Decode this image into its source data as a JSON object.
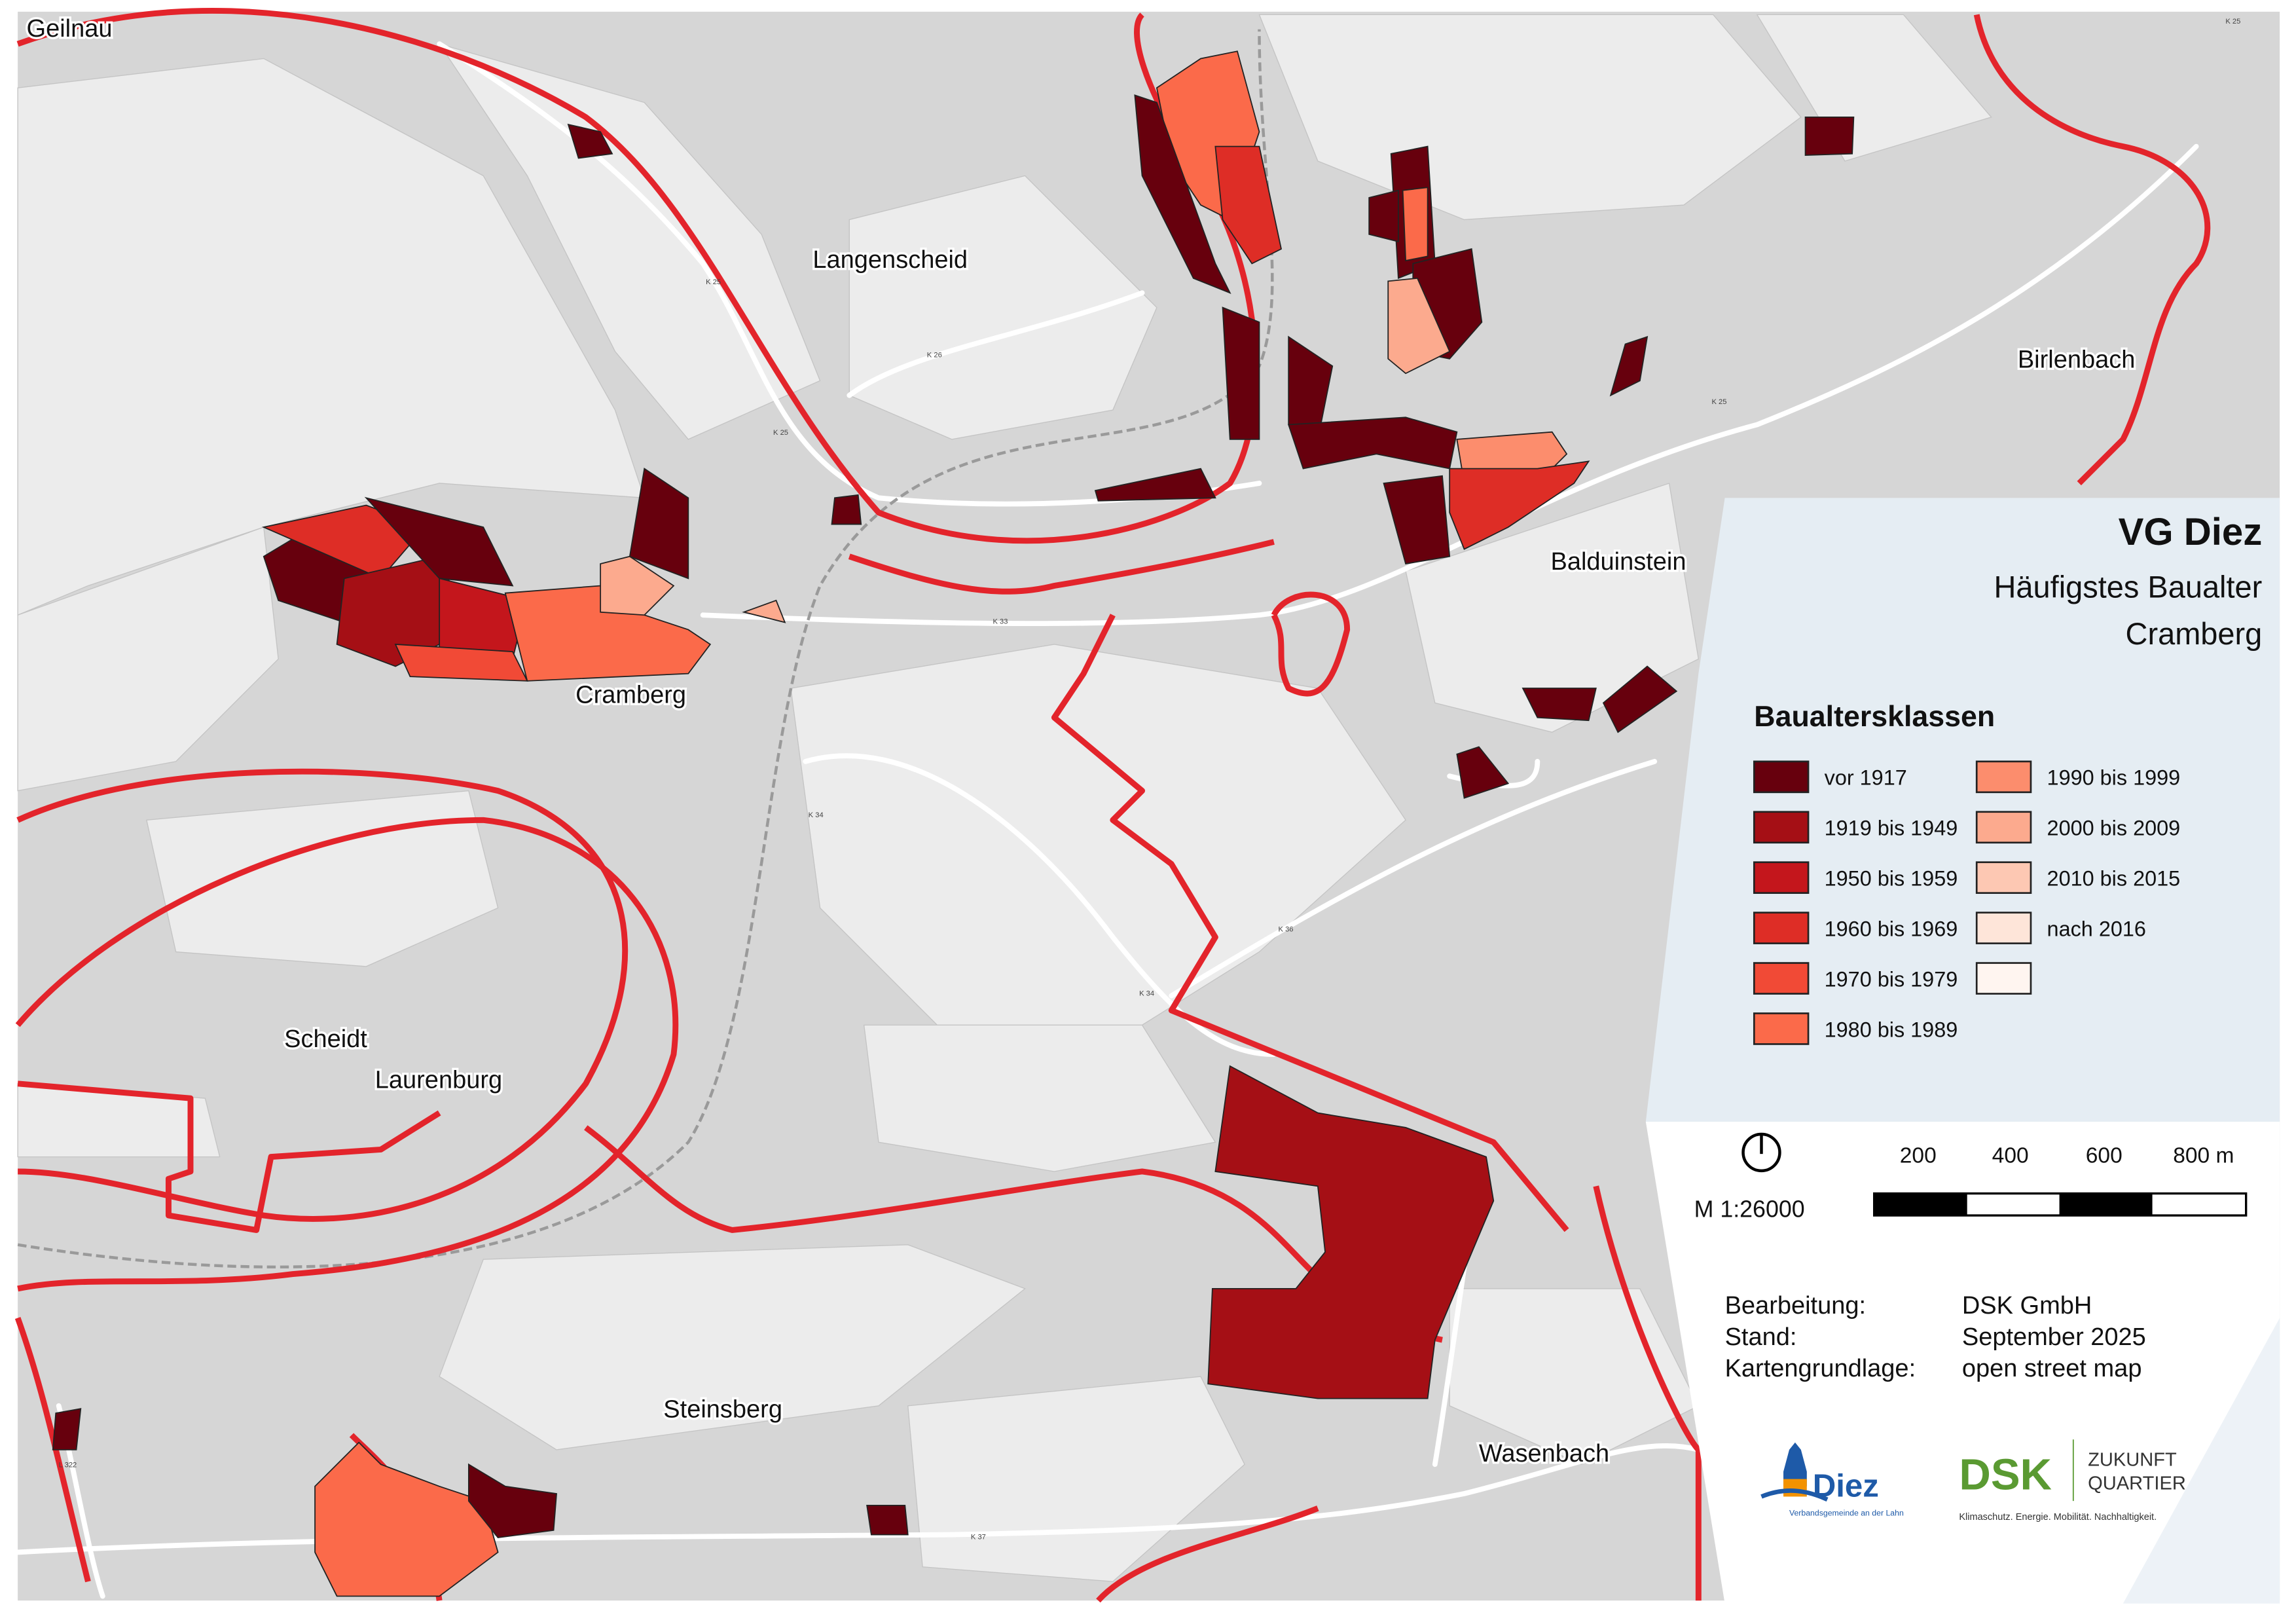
{
  "title": "VG Diez",
  "subtitle": "Häufigstes Baualter",
  "place": "Cramberg",
  "legend": {
    "heading": "Baualtersklassen",
    "classes": [
      {
        "label": "vor 1917",
        "color": "#67000d"
      },
      {
        "label": "1919 bis 1949",
        "color": "#a50f15"
      },
      {
        "label": "1950 bis 1959",
        "color": "#c4161c"
      },
      {
        "label": "1960 bis 1969",
        "color": "#de2d26"
      },
      {
        "label": "1970 bis 1979",
        "color": "#f14a36"
      },
      {
        "label": "1980 bis 1989",
        "color": "#fb6a4a"
      },
      {
        "label": "1990 bis 1999",
        "color": "#fc8d6d"
      },
      {
        "label": "2000 bis 2009",
        "color": "#fcaa8e"
      },
      {
        "label": "2010 bis 2015",
        "color": "#fdc8b3"
      },
      {
        "label": "nach 2016",
        "color": "#fee5d9"
      },
      {
        "label": "",
        "color": "#fff5f0"
      }
    ]
  },
  "scale": {
    "ratio": "M 1:26000",
    "ticks": [
      "200",
      "400",
      "600",
      "800 m"
    ],
    "north_icon": "north-arrow-icon"
  },
  "credits": {
    "rows": [
      {
        "key": "Bearbeitung:",
        "value": "DSK GmbH"
      },
      {
        "key": "Stand:",
        "value": "September 2025"
      },
      {
        "key": "Kartengrundlage:",
        "value": "open street map"
      }
    ]
  },
  "logos": {
    "diez": {
      "name": "Diez",
      "tagline": "Verbandsgemeinde an der Lahn",
      "color": "#1e5aa8"
    },
    "dsk": {
      "name": "DSK",
      "line1": "ZUKUNFT",
      "line2": "QUARTIER",
      "tagline": "Klimaschutz. Energie. Mobilität. Nachhaltigkeit.",
      "color": "#5a9a32"
    }
  },
  "map": {
    "towns": [
      "Geilnau",
      "Langenscheid",
      "Birlenbach",
      "Cramberg",
      "Balduinstein",
      "Scheidt",
      "Laurenburg",
      "Steinsberg",
      "Wasenbach"
    ],
    "roads": [
      "K 25",
      "K 26",
      "K 25",
      "K 33",
      "K 34",
      "K 36",
      "K 34",
      "K 37",
      "L 322",
      "K 25",
      "K 25"
    ],
    "boundary_color": "#e3242b"
  }
}
